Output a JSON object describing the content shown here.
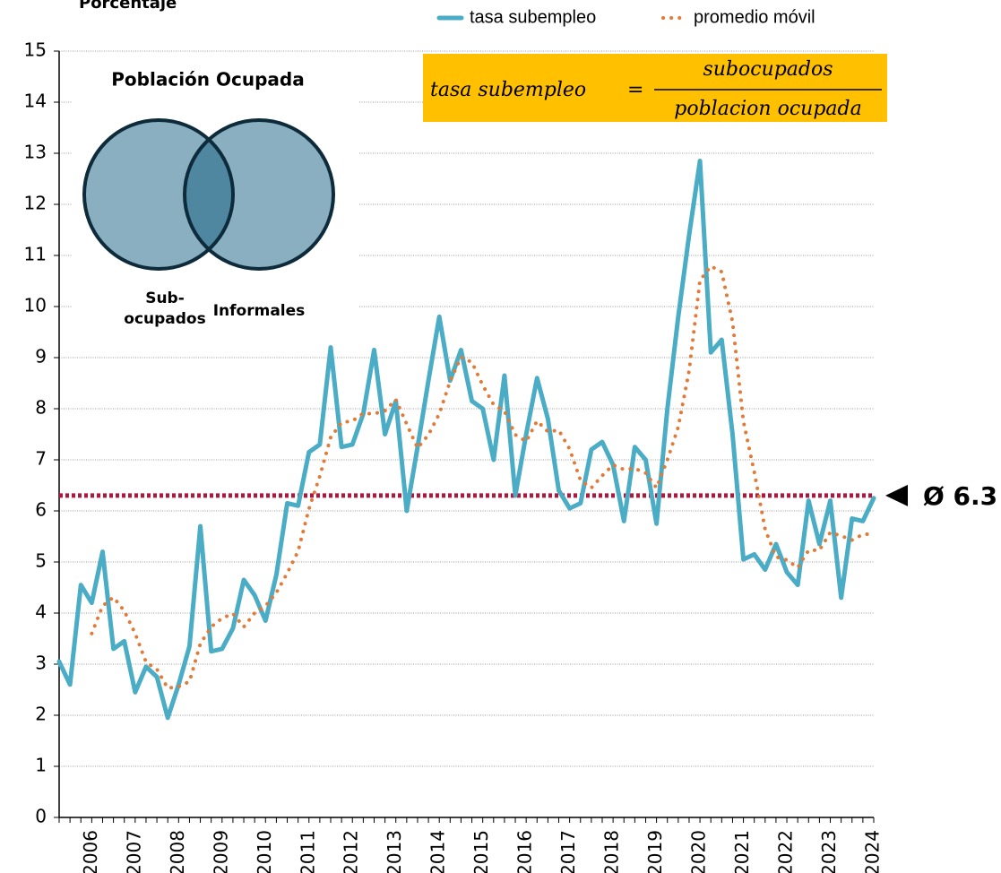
{
  "chart_data": {
    "type": "line",
    "y_label": "Porcentaje",
    "categories": [
      null,
      null,
      null,
      "2006",
      null,
      null,
      null,
      "2007",
      null,
      null,
      null,
      "2008",
      null,
      null,
      null,
      "2009",
      null,
      null,
      null,
      "2010",
      null,
      null,
      null,
      "2011",
      null,
      null,
      null,
      "2012",
      null,
      null,
      null,
      "2013",
      null,
      null,
      null,
      "2014",
      null,
      null,
      null,
      "2015",
      null,
      null,
      null,
      "2016",
      null,
      null,
      null,
      "2017",
      null,
      null,
      null,
      "2018",
      null,
      null,
      null,
      "2019",
      null,
      null,
      null,
      "2020",
      null,
      null,
      null,
      "2021",
      null,
      null,
      null,
      "2022",
      null,
      null,
      null,
      "2023",
      null,
      null,
      null,
      "2024"
    ],
    "series": [
      {
        "name": "tasa subempleo",
        "color": "#4bacc6",
        "style": "solid",
        "values": [
          3.05,
          2.6,
          4.55,
          4.2,
          5.2,
          3.3,
          3.45,
          2.45,
          2.95,
          2.75,
          1.95,
          2.6,
          3.35,
          5.7,
          3.25,
          3.3,
          3.7,
          4.65,
          4.35,
          3.85,
          4.75,
          6.15,
          6.1,
          7.15,
          7.3,
          9.2,
          7.25,
          7.3,
          7.9,
          9.15,
          7.5,
          8.15,
          6.0,
          7.25,
          8.55,
          9.8,
          8.55,
          9.15,
          8.15,
          8.0,
          7.0,
          8.65,
          6.3,
          7.5,
          8.6,
          7.8,
          6.4,
          6.05,
          6.15,
          7.2,
          7.35,
          6.9,
          5.8,
          7.25,
          7.0,
          5.75,
          8.0,
          9.8,
          11.4,
          12.85,
          9.1,
          9.35,
          7.5,
          5.05,
          5.15,
          4.85,
          5.35,
          4.8,
          4.55,
          6.2,
          5.35,
          6.2,
          4.3,
          5.85,
          5.8,
          6.25
        ]
      },
      {
        "name": "promedio móvil",
        "color": "#e07b39",
        "style": "dotted",
        "values": [
          null,
          null,
          null,
          3.6,
          4.14,
          4.31,
          4.04,
          3.6,
          3.04,
          2.9,
          2.53,
          2.56,
          2.66,
          3.4,
          3.73,
          3.9,
          3.99,
          3.73,
          4.0,
          4.14,
          4.4,
          4.78,
          5.21,
          6.04,
          6.68,
          7.44,
          7.73,
          7.76,
          7.91,
          7.9,
          7.96,
          8.18,
          7.7,
          7.23,
          7.49,
          7.9,
          8.54,
          9.01,
          8.91,
          8.46,
          8.08,
          7.95,
          7.49,
          7.36,
          7.76,
          7.55,
          7.58,
          7.21,
          6.6,
          6.45,
          6.69,
          6.9,
          6.81,
          6.83,
          6.74,
          6.45,
          7.0,
          7.64,
          8.74,
          10.51,
          10.79,
          10.68,
          9.7,
          7.75,
          6.76,
          5.64,
          5.1,
          5.04,
          4.89,
          5.23,
          5.23,
          5.58,
          5.51,
          5.43,
          5.54,
          5.55
        ]
      }
    ],
    "mean": {
      "value": 6.3,
      "label": "Ø 6.3",
      "color": "#b0173d"
    },
    "ylim": [
      0,
      15
    ],
    "yticks": [
      0,
      1,
      2,
      3,
      4,
      5,
      6,
      7,
      8,
      9,
      10,
      11,
      12,
      13,
      14,
      15
    ],
    "grid": true,
    "legend": "top-right",
    "inset": {
      "title": "Población Ocupada",
      "left": [
        "Sub-",
        "ocupados"
      ],
      "right": "Informales",
      "formula": {
        "lhs": "tasa subempleo",
        "eq": "=",
        "numerator": "subocupados",
        "denominator": "poblacion ocupada"
      }
    }
  }
}
